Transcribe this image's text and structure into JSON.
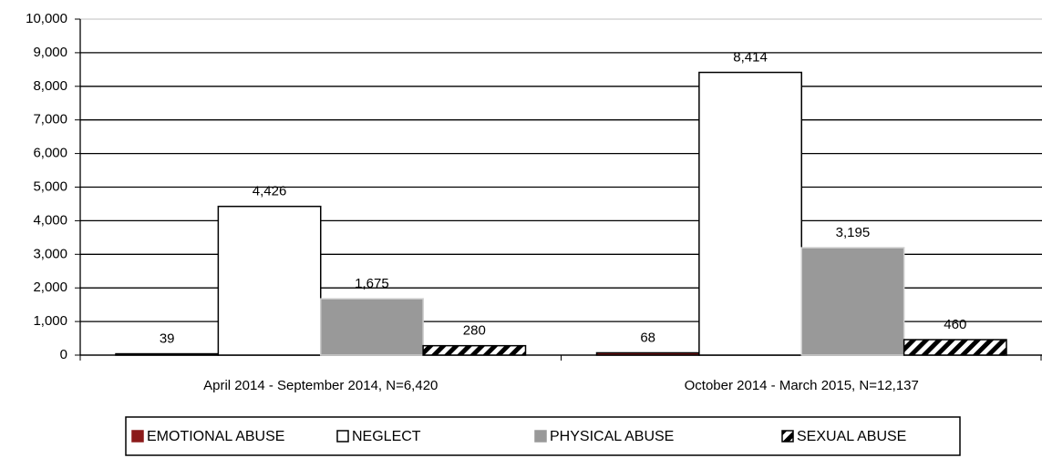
{
  "chart_data": {
    "type": "bar",
    "categories": [
      "April 2014 - September 2014, N=6,420",
      "October 2014 - March 2015, N=12,137"
    ],
    "series": [
      {
        "name": "EMOTIONAL ABUSE",
        "color": "#8b1a1a",
        "values": [
          39,
          68
        ]
      },
      {
        "name": "NEGLECT",
        "color": "#ffffff",
        "values": [
          4426,
          8414
        ],
        "value_labels": [
          "4,426",
          "8,414"
        ]
      },
      {
        "name": "PHYSICAL ABUSE",
        "color": "#999999",
        "values": [
          1675,
          3195
        ],
        "value_labels": [
          "1,675",
          "3,195"
        ]
      },
      {
        "name": "SEXUAL ABUSE",
        "color": "#000000",
        "pattern": "diagonal",
        "values": [
          280,
          460
        ]
      }
    ],
    "ylim": [
      0,
      10000
    ],
    "yticks": [
      0,
      {
        "value": 1000,
        "label": "1,000"
      },
      {
        "value": 2000,
        "label": "2,000"
      },
      {
        "value": 3000,
        "label": "3,000"
      },
      {
        "value": 4000,
        "label": "4,000"
      },
      {
        "value": 5000,
        "label": "5,000"
      },
      {
        "value": 6000,
        "label": "6,000"
      },
      {
        "value": 7000,
        "label": "7,000"
      },
      {
        "value": 8000,
        "label": "8,000"
      },
      {
        "value": 9000,
        "label": "9,000"
      },
      {
        "value": 10000,
        "label": "10,000"
      }
    ],
    "grid": true,
    "legend": "bottom"
  }
}
